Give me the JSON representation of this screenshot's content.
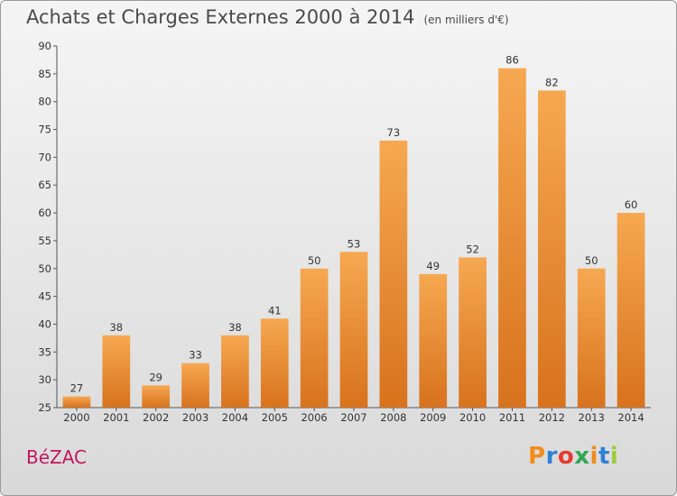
{
  "title": "Achats et Charges Externes 2000 à 2014",
  "subtitle": "(en milliers d'€)",
  "commune": "BéZAC",
  "logo": {
    "letters": [
      "P",
      "r",
      "o",
      "x",
      "i",
      "t",
      "i"
    ],
    "colors": [
      "#f28c1c",
      "#2f7fd6",
      "#e63a2e",
      "#2fa84f",
      "#f28c1c",
      "#2f7fd6",
      "#9ccc3c"
    ]
  },
  "colors": {
    "bar_top": "#f6a851",
    "bar_bottom": "#d8721d",
    "axis": "#555555"
  },
  "chart_data": {
    "type": "bar",
    "categories": [
      "2000",
      "2001",
      "2002",
      "2003",
      "2004",
      "2005",
      "2006",
      "2007",
      "2008",
      "2009",
      "2010",
      "2011",
      "2012",
      "2013",
      "2014"
    ],
    "values": [
      27,
      38,
      29,
      33,
      38,
      41,
      50,
      53,
      73,
      49,
      52,
      86,
      82,
      50,
      60
    ],
    "ylim": [
      25,
      90
    ],
    "yticks": [
      25,
      30,
      35,
      40,
      45,
      50,
      55,
      60,
      65,
      70,
      75,
      80,
      85,
      90
    ],
    "grid": false
  }
}
